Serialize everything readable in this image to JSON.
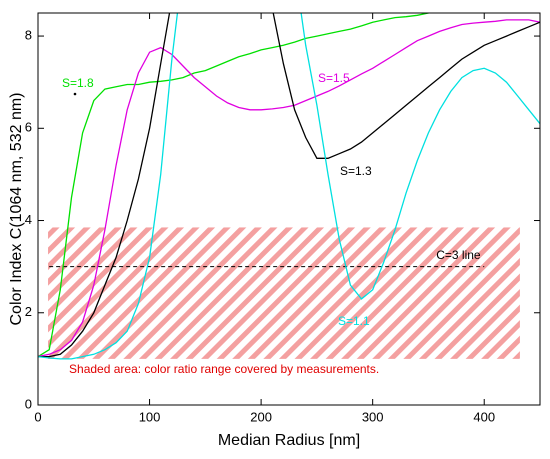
{
  "chart_data": {
    "type": "line",
    "xlabel": "Median Radius [nm]",
    "ylabel": "Color Index C(1064 nm, 532 nm)",
    "xlim": [
      0,
      450
    ],
    "ylim": [
      0,
      8.5
    ],
    "xticks": [
      0,
      100,
      200,
      300,
      400
    ],
    "yticks": [
      0,
      2,
      4,
      6,
      8
    ],
    "x": [
      0,
      10,
      20,
      30,
      40,
      50,
      60,
      70,
      80,
      90,
      100,
      110,
      120,
      130,
      140,
      150,
      160,
      170,
      180,
      190,
      200,
      210,
      220,
      230,
      240,
      250,
      260,
      270,
      280,
      290,
      300,
      310,
      320,
      330,
      340,
      350,
      360,
      370,
      380,
      390,
      400,
      410,
      420,
      430,
      440,
      450
    ],
    "series": [
      {
        "name": "S=1.8",
        "color": "#00e000",
        "values": [
          1.05,
          1.2,
          2.5,
          4.5,
          5.9,
          6.6,
          6.85,
          6.9,
          6.95,
          6.95,
          7.0,
          7.02,
          7.05,
          7.1,
          7.2,
          7.25,
          7.35,
          7.45,
          7.55,
          7.62,
          7.7,
          7.75,
          7.8,
          7.87,
          7.95,
          8.0,
          8.05,
          8.1,
          8.15,
          8.22,
          8.3,
          8.35,
          8.4,
          8.42,
          8.45,
          8.5,
          8.55,
          8.58,
          null,
          null,
          null,
          null,
          null,
          null,
          null,
          null
        ]
      },
      {
        "name": "S=1.5",
        "color": "#e000e0",
        "values": [
          1.05,
          1.1,
          1.2,
          1.4,
          1.8,
          2.6,
          3.8,
          5.2,
          6.4,
          7.2,
          7.65,
          7.75,
          7.6,
          7.35,
          7.1,
          6.9,
          6.7,
          6.55,
          6.45,
          6.4,
          6.4,
          6.42,
          6.45,
          6.5,
          6.6,
          6.7,
          6.8,
          6.92,
          7.05,
          7.18,
          7.3,
          7.45,
          7.6,
          7.75,
          7.9,
          8.0,
          8.1,
          8.18,
          8.25,
          8.28,
          8.3,
          8.32,
          8.35,
          8.35,
          8.35,
          8.3
        ]
      },
      {
        "name": "S=1.3",
        "color": "#000000",
        "values": [
          1.05,
          1.05,
          1.1,
          1.3,
          1.6,
          2.0,
          2.6,
          3.2,
          4.0,
          4.9,
          6.0,
          7.4,
          8.8,
          null,
          null,
          null,
          null,
          null,
          null,
          null,
          null,
          8.6,
          7.4,
          6.4,
          5.8,
          5.35,
          5.35,
          5.45,
          5.55,
          5.7,
          5.9,
          6.1,
          6.3,
          6.5,
          6.7,
          6.9,
          7.1,
          7.3,
          7.5,
          7.65,
          7.8,
          7.9,
          8.0,
          8.1,
          8.2,
          8.3
        ]
      },
      {
        "name": "S=1.1",
        "color": "#00e0e0",
        "values": [
          1.05,
          1.02,
          1.0,
          1.0,
          1.05,
          1.1,
          1.2,
          1.35,
          1.6,
          2.2,
          3.2,
          5.0,
          7.5,
          9.5,
          null,
          null,
          null,
          null,
          null,
          null,
          null,
          null,
          null,
          9.5,
          7.8,
          6.5,
          5.0,
          3.6,
          2.6,
          2.3,
          2.5,
          3.1,
          3.8,
          4.6,
          5.3,
          5.9,
          6.4,
          6.8,
          7.1,
          7.25,
          7.3,
          7.2,
          7.0,
          6.7,
          6.4,
          6.1
        ]
      }
    ],
    "ref_line": {
      "label": "C=3 line",
      "y": 3,
      "x": [
        10,
        400
      ],
      "color": "#000000"
    },
    "shade": {
      "label": "Shaded area: color ratio range covered by measurements.",
      "x": [
        9,
        432
      ],
      "y": [
        1,
        3.85
      ],
      "color": "#f4a0a0",
      "label_color": "#e00000"
    }
  }
}
